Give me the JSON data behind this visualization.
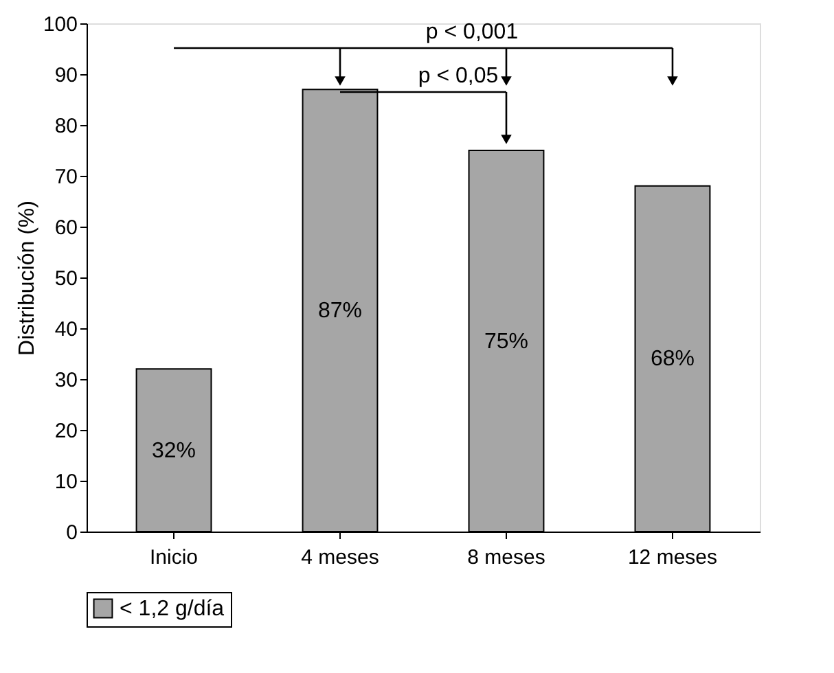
{
  "chart_data": {
    "type": "bar",
    "ylabel": "Distribución (%)",
    "categories": [
      "Inicio",
      "4 meses",
      "8 meses",
      "12 meses"
    ],
    "series": [
      {
        "name": "< 1,2 g/día",
        "color": "#a6a6a6",
        "values": [
          32,
          87,
          75,
          68
        ],
        "value_labels": [
          "32%",
          "87%",
          "75%",
          "68%"
        ]
      }
    ],
    "ylim": [
      0,
      100
    ],
    "yticks": [
      0,
      10,
      20,
      30,
      40,
      50,
      60,
      70,
      80,
      90,
      100
    ],
    "grid": false,
    "legend": "bottom",
    "annotations": [
      "p < 0,001",
      {
        "text": "p < 0,05",
        "x": "8 meses",
        "y": 75
      }
    ]
  }
}
